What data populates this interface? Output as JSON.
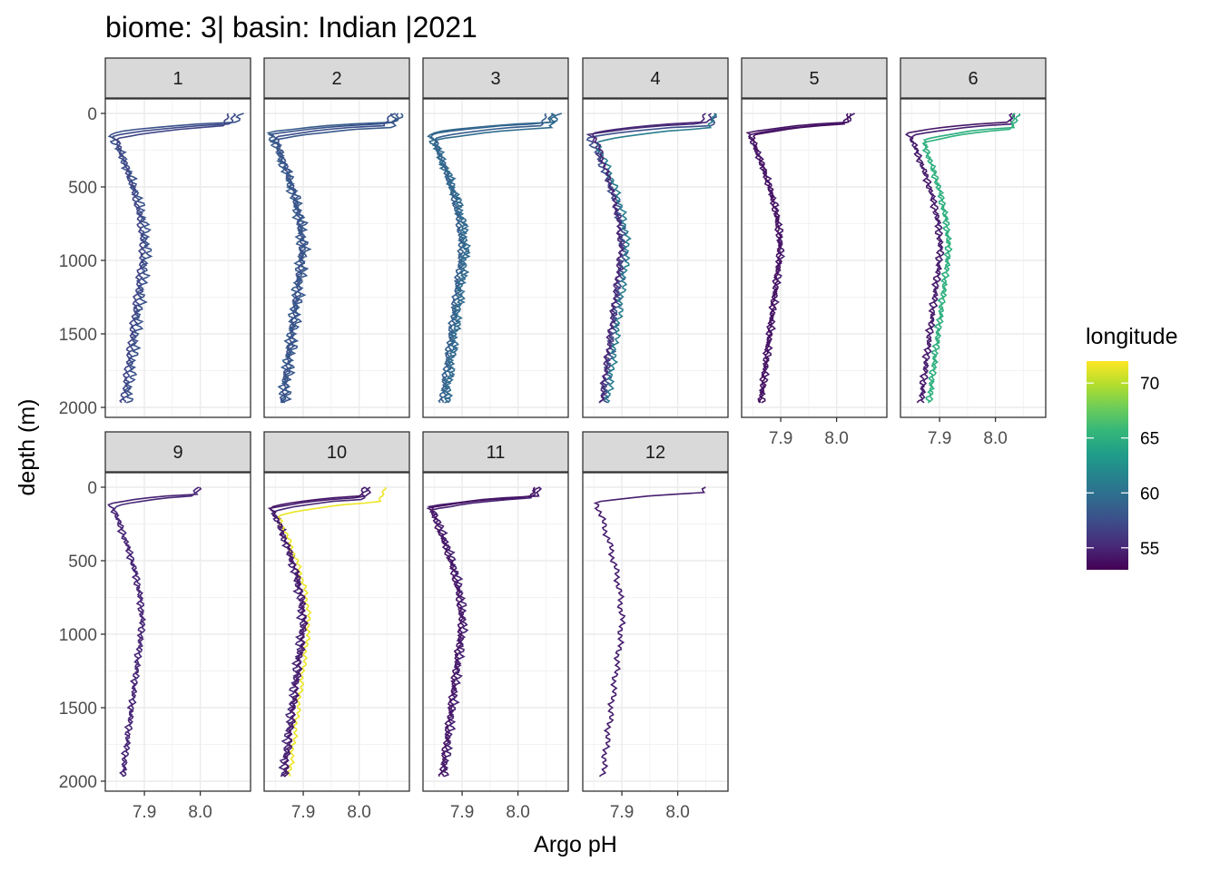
{
  "chart_data": {
    "type": "line",
    "title": "biome: 3| basin: Indian |2021",
    "xlabel": "Argo pH",
    "ylabel": "depth (m)",
    "xlim": [
      7.83,
      8.09
    ],
    "ylim": [
      2000,
      0
    ],
    "x_ticks": [
      "7.9",
      "8.0"
    ],
    "x_tick_values": [
      7.9,
      8.0
    ],
    "y_ticks": [
      "0",
      "500",
      "1000",
      "1500",
      "2000"
    ],
    "y_tick_values": [
      0,
      500,
      1000,
      1500,
      2000
    ],
    "grid": true,
    "legend": {
      "title": "longitude",
      "placement": "right",
      "type": "colorbar",
      "range": [
        53,
        72
      ],
      "ticks": [
        "70",
        "65",
        "60",
        "55"
      ],
      "tick_values": [
        70,
        65,
        60,
        55
      ],
      "colors": [
        "#440154",
        "#482878",
        "#3E4A89",
        "#31688E",
        "#26828E",
        "#1F9E89",
        "#35B779",
        "#6DCD59",
        "#B4DE2C",
        "#FDE725"
      ]
    },
    "panels": [
      {
        "label": "1",
        "profiles": [
          {
            "longitude": 57.2,
            "shallow_ph": 8.06,
            "mixed_depth": 110,
            "min_ph": 7.845,
            "deep_ph": 7.865,
            "wiggle": 0.004
          },
          {
            "longitude": 57.8,
            "shallow_ph": 8.075,
            "mixed_depth": 90,
            "min_ph": 7.84,
            "deep_ph": 7.87,
            "wiggle": 0.006
          },
          {
            "longitude": 56.9,
            "shallow_ph": 8.05,
            "mixed_depth": 130,
            "min_ph": 7.85,
            "deep_ph": 7.86,
            "wiggle": 0.003
          }
        ]
      },
      {
        "label": "2",
        "profiles": [
          {
            "longitude": 58.0,
            "shallow_ph": 8.07,
            "mixed_depth": 100,
            "min_ph": 7.845,
            "deep_ph": 7.865,
            "wiggle": 0.004
          },
          {
            "longitude": 58.4,
            "shallow_ph": 8.08,
            "mixed_depth": 85,
            "min_ph": 7.84,
            "deep_ph": 7.86,
            "wiggle": 0.005
          },
          {
            "longitude": 57.6,
            "shallow_ph": 8.055,
            "mixed_depth": 120,
            "min_ph": 7.85,
            "deep_ph": 7.862,
            "wiggle": 0.003
          },
          {
            "longitude": 58.2,
            "shallow_ph": 8.065,
            "mixed_depth": 140,
            "min_ph": 7.848,
            "deep_ph": 7.868,
            "wiggle": 0.006
          }
        ]
      },
      {
        "label": "3",
        "profiles": [
          {
            "longitude": 58.9,
            "shallow_ph": 8.06,
            "mixed_depth": 100,
            "min_ph": 7.845,
            "deep_ph": 7.865,
            "wiggle": 0.004
          },
          {
            "longitude": 59.3,
            "shallow_ph": 8.075,
            "mixed_depth": 90,
            "min_ph": 7.842,
            "deep_ph": 7.87,
            "wiggle": 0.006
          },
          {
            "longitude": 58.6,
            "shallow_ph": 8.05,
            "mixed_depth": 125,
            "min_ph": 7.85,
            "deep_ph": 7.862,
            "wiggle": 0.003
          },
          {
            "longitude": 59.6,
            "shallow_ph": 8.065,
            "mixed_depth": 145,
            "min_ph": 7.848,
            "deep_ph": 7.872,
            "wiggle": 0.005
          }
        ]
      },
      {
        "label": "4",
        "profiles": [
          {
            "longitude": 55.4,
            "shallow_ph": 8.06,
            "mixed_depth": 100,
            "min_ph": 7.845,
            "deep_ph": 7.865,
            "wiggle": 0.004
          },
          {
            "longitude": 57.5,
            "shallow_ph": 8.07,
            "mixed_depth": 120,
            "min_ph": 7.842,
            "deep_ph": 7.868,
            "wiggle": 0.005
          },
          {
            "longitude": 61.0,
            "shallow_ph": 8.065,
            "mixed_depth": 150,
            "min_ph": 7.855,
            "deep_ph": 7.875,
            "wiggle": 0.004
          },
          {
            "longitude": 55.0,
            "shallow_ph": 8.05,
            "mixed_depth": 90,
            "min_ph": 7.85,
            "deep_ph": 7.862,
            "wiggle": 0.003
          }
        ]
      },
      {
        "label": "5",
        "profiles": [
          {
            "longitude": 54.0,
            "shallow_ph": 8.025,
            "mixed_depth": 90,
            "min_ph": 7.843,
            "deep_ph": 7.862,
            "wiggle": 0.003
          },
          {
            "longitude": 54.3,
            "shallow_ph": 8.03,
            "mixed_depth": 100,
            "min_ph": 7.845,
            "deep_ph": 7.866,
            "wiggle": 0.004
          },
          {
            "longitude": 53.8,
            "shallow_ph": 8.02,
            "mixed_depth": 110,
            "min_ph": 7.848,
            "deep_ph": 7.864,
            "wiggle": 0.003
          }
        ]
      },
      {
        "label": "6",
        "profiles": [
          {
            "longitude": 54.2,
            "shallow_ph": 8.03,
            "mixed_depth": 90,
            "min_ph": 7.845,
            "deep_ph": 7.865,
            "wiggle": 0.004
          },
          {
            "longitude": 54.6,
            "shallow_ph": 8.035,
            "mixed_depth": 110,
            "min_ph": 7.848,
            "deep_ph": 7.868,
            "wiggle": 0.003
          },
          {
            "longitude": 64.8,
            "shallow_ph": 8.04,
            "mixed_depth": 140,
            "min_ph": 7.87,
            "deep_ph": 7.88,
            "wiggle": 0.004
          },
          {
            "longitude": 65.2,
            "shallow_ph": 8.035,
            "mixed_depth": 160,
            "min_ph": 7.872,
            "deep_ph": 7.882,
            "wiggle": 0.003
          }
        ]
      },
      {
        "label": "9",
        "profiles": [
          {
            "longitude": 54.8,
            "shallow_ph": 8.0,
            "mixed_depth": 70,
            "min_ph": 7.84,
            "deep_ph": 7.86,
            "wiggle": 0.004
          },
          {
            "longitude": 55.2,
            "shallow_ph": 7.995,
            "mixed_depth": 90,
            "min_ph": 7.845,
            "deep_ph": 7.862,
            "wiggle": 0.003
          }
        ]
      },
      {
        "label": "10",
        "profiles": [
          {
            "longitude": 54.5,
            "shallow_ph": 8.02,
            "mixed_depth": 100,
            "min_ph": 7.845,
            "deep_ph": 7.865,
            "wiggle": 0.004
          },
          {
            "longitude": 55.0,
            "shallow_ph": 8.015,
            "mixed_depth": 120,
            "min_ph": 7.848,
            "deep_ph": 7.862,
            "wiggle": 0.005
          },
          {
            "longitude": 71.5,
            "shallow_ph": 8.045,
            "mixed_depth": 150,
            "min_ph": 7.855,
            "deep_ph": 7.875,
            "wiggle": 0.003
          },
          {
            "longitude": 54.2,
            "shallow_ph": 8.01,
            "mixed_depth": 90,
            "min_ph": 7.843,
            "deep_ph": 7.868,
            "wiggle": 0.003
          }
        ]
      },
      {
        "label": "11",
        "profiles": [
          {
            "longitude": 54.3,
            "shallow_ph": 8.04,
            "mixed_depth": 90,
            "min_ph": 7.845,
            "deep_ph": 7.865,
            "wiggle": 0.004
          },
          {
            "longitude": 54.7,
            "shallow_ph": 8.035,
            "mixed_depth": 110,
            "min_ph": 7.848,
            "deep_ph": 7.868,
            "wiggle": 0.005
          },
          {
            "longitude": 54.0,
            "shallow_ph": 8.03,
            "mixed_depth": 100,
            "min_ph": 7.842,
            "deep_ph": 7.862,
            "wiggle": 0.003
          }
        ]
      },
      {
        "label": "12",
        "profiles": [
          {
            "longitude": 54.5,
            "shallow_ph": 8.05,
            "mixed_depth": 60,
            "min_ph": 7.855,
            "deep_ph": 7.865,
            "wiggle": 0.004
          }
        ]
      }
    ]
  }
}
